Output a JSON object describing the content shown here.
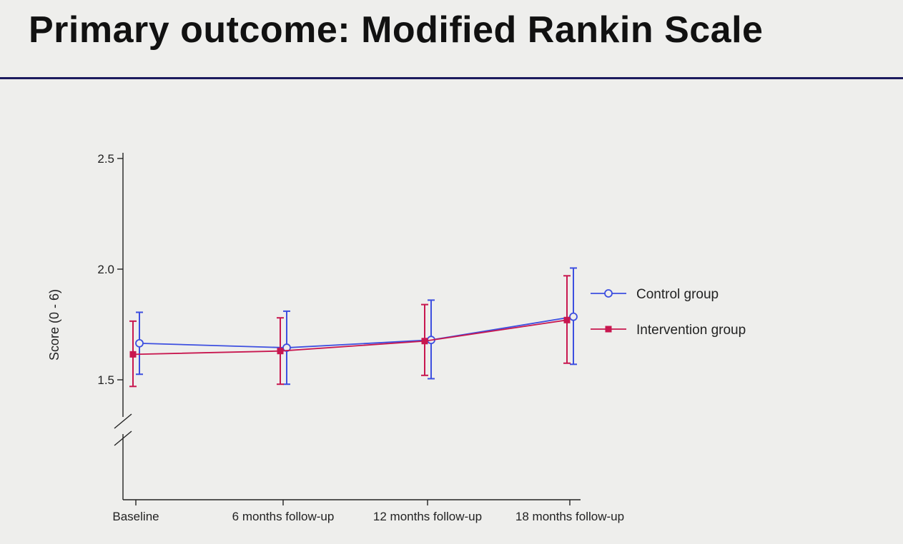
{
  "slide": {
    "title": "Primary outcome: Modified Rankin Scale"
  },
  "chart_data": {
    "type": "line",
    "title": "",
    "xlabel": "",
    "ylabel": "Score (0 - 6)",
    "categories": [
      "Baseline",
      "6 months follow-up",
      "12 months follow-up",
      "18 months follow-up"
    ],
    "y_ticks": [
      "1.5",
      "2.0",
      "2.5"
    ],
    "ylim": [
      1.5,
      2.5
    ],
    "y_axis_break": true,
    "grid": false,
    "legend_position": "right",
    "series": [
      {
        "name": "Control group",
        "color": "#3d4fe0",
        "marker": "open-circle",
        "values": [
          1.665,
          1.645,
          1.68,
          1.785
        ],
        "error_low": [
          1.525,
          1.48,
          1.505,
          1.57
        ],
        "error_high": [
          1.805,
          1.81,
          1.86,
          2.005
        ]
      },
      {
        "name": "Intervention group",
        "color": "#c8174f",
        "marker": "filled-square",
        "values": [
          1.615,
          1.63,
          1.675,
          1.77
        ],
        "error_low": [
          1.47,
          1.48,
          1.52,
          1.575
        ],
        "error_high": [
          1.765,
          1.78,
          1.84,
          1.97
        ]
      }
    ]
  }
}
